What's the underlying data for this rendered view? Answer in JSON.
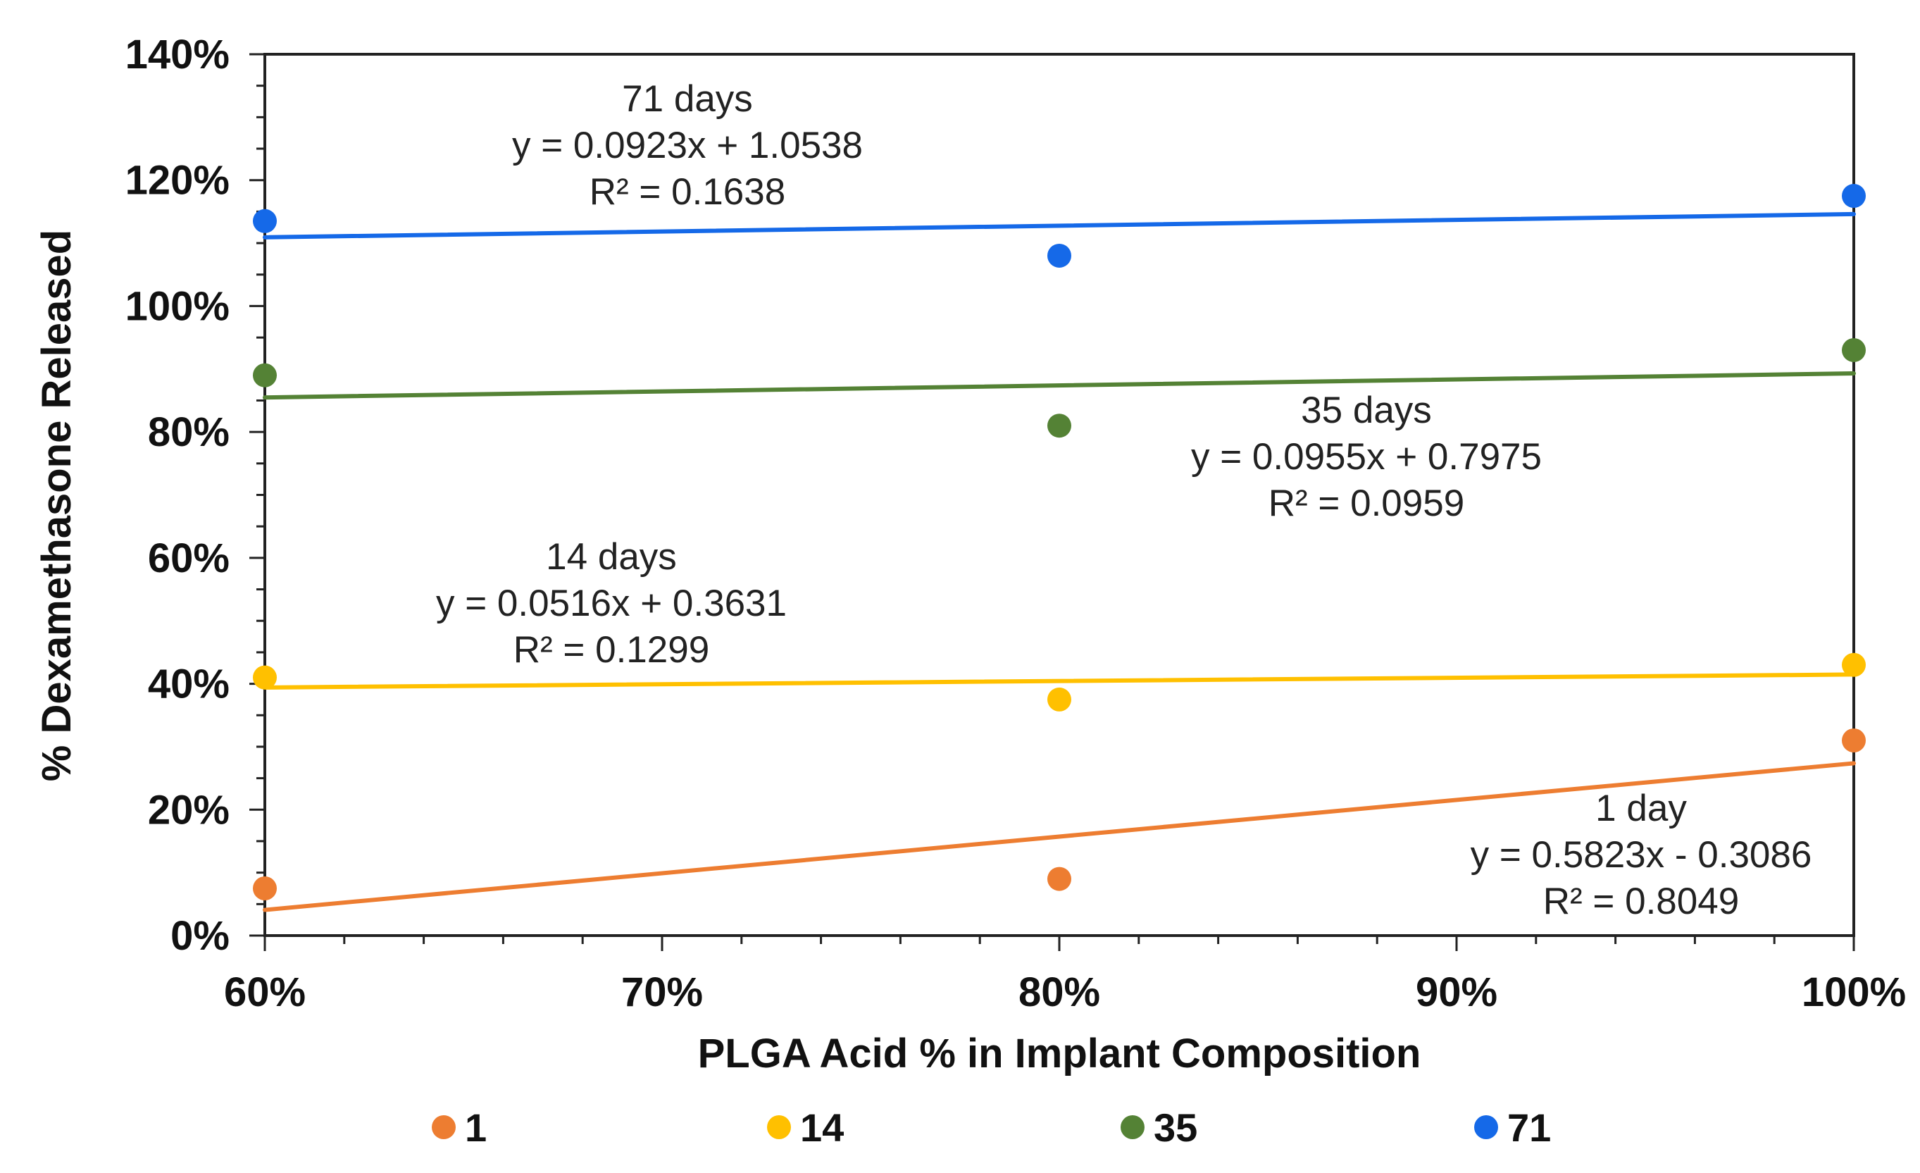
{
  "chart_data": {
    "type": "scatter",
    "title": "",
    "xlabel": "PLGA Acid % in Implant Composition",
    "ylabel": "% Dexamethasone Released",
    "xlim": [
      0.6,
      1.0
    ],
    "ylim": [
      0,
      1.4
    ],
    "x_ticks": [
      {
        "value": 0.6,
        "label": "60%"
      },
      {
        "value": 0.7,
        "label": "70%"
      },
      {
        "value": 0.8,
        "label": "80%"
      },
      {
        "value": 0.9,
        "label": "90%"
      },
      {
        "value": 1.0,
        "label": "100%"
      }
    ],
    "y_ticks": [
      {
        "value": 0.0,
        "label": "0%"
      },
      {
        "value": 0.2,
        "label": "20%"
      },
      {
        "value": 0.4,
        "label": "40%"
      },
      {
        "value": 0.6,
        "label": "60%"
      },
      {
        "value": 0.8,
        "label": "80%"
      },
      {
        "value": 1.0,
        "label": "100%"
      },
      {
        "value": 1.2,
        "label": "120%"
      },
      {
        "value": 1.4,
        "label": "140%"
      }
    ],
    "series": [
      {
        "name": "1",
        "color": "#ED7D31",
        "points": [
          {
            "x": 0.6,
            "y": 0.075
          },
          {
            "x": 0.8,
            "y": 0.09
          },
          {
            "x": 1.0,
            "y": 0.31
          }
        ],
        "trendline": {
          "slope": 0.5823,
          "intercept": -0.3086
        },
        "annotation": [
          "1 day",
          "y = 0.5823x - 0.3086",
          "R² = 0.8049"
        ]
      },
      {
        "name": "14",
        "color": "#FFC000",
        "points": [
          {
            "x": 0.6,
            "y": 0.41
          },
          {
            "x": 0.8,
            "y": 0.375
          },
          {
            "x": 1.0,
            "y": 0.43
          }
        ],
        "trendline": {
          "slope": 0.0516,
          "intercept": 0.3631
        },
        "annotation": [
          "14 days",
          "y = 0.0516x + 0.3631",
          "R² = 0.1299"
        ]
      },
      {
        "name": "35",
        "color": "#548235",
        "points": [
          {
            "x": 0.6,
            "y": 0.89
          },
          {
            "x": 0.8,
            "y": 0.81
          },
          {
            "x": 1.0,
            "y": 0.93
          }
        ],
        "trendline": {
          "slope": 0.0955,
          "intercept": 0.7975
        },
        "annotation": [
          "35 days",
          "y = 0.0955x + 0.7975",
          "R² = 0.0959"
        ]
      },
      {
        "name": "71",
        "color": "#1569E8",
        "points": [
          {
            "x": 0.6,
            "y": 1.135
          },
          {
            "x": 0.8,
            "y": 1.08
          },
          {
            "x": 1.0,
            "y": 1.175
          }
        ],
        "trendline": {
          "slope": 0.0923,
          "intercept": 1.0538
        },
        "annotation": [
          "71 days",
          "y = 0.0923x + 1.0538",
          "R² = 0.1638"
        ]
      }
    ],
    "legend_position": "bottom"
  }
}
